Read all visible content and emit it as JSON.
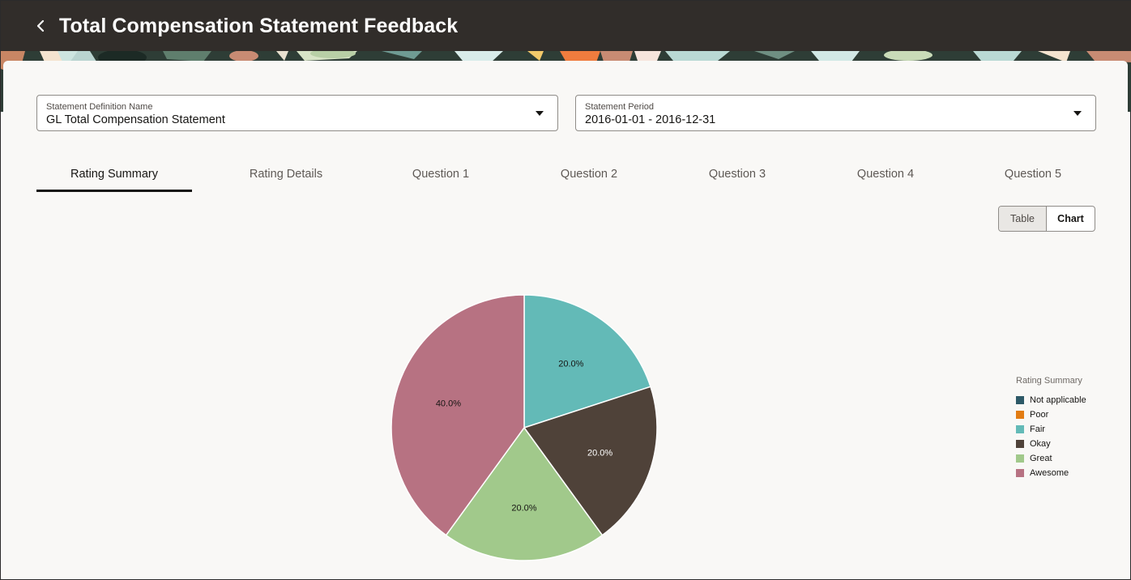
{
  "header": {
    "title": "Total Compensation Statement Feedback",
    "back_icon": "chevron-left-icon"
  },
  "filters": {
    "definition": {
      "label": "Statement Definition Name",
      "value": "GL Total Compensation Statement"
    },
    "period": {
      "label": "Statement Period",
      "value": "2016-01-01 - 2016-12-31"
    }
  },
  "tabs": [
    {
      "label": "Rating Summary",
      "active": true
    },
    {
      "label": "Rating Details",
      "active": false
    },
    {
      "label": "Question 1",
      "active": false
    },
    {
      "label": "Question 2",
      "active": false
    },
    {
      "label": "Question 3",
      "active": false
    },
    {
      "label": "Question 4",
      "active": false
    },
    {
      "label": "Question 5",
      "active": false
    }
  ],
  "view_toggle": {
    "table_label": "Table",
    "chart_label": "Chart",
    "selected": "Chart"
  },
  "chart_data": {
    "type": "pie",
    "legend_title": "Rating Summary",
    "legend_position": "right",
    "slices": [
      {
        "name": "Not applicable",
        "value": 0,
        "label": "",
        "color": "#2d5967"
      },
      {
        "name": "Poor",
        "value": 0,
        "label": "",
        "color": "#e27c13"
      },
      {
        "name": "Fair",
        "value": 20.0,
        "label": "20.0%",
        "color": "#63bab7"
      },
      {
        "name": "Okay",
        "value": 20.0,
        "label": "20.0%",
        "color": "#4f4239"
      },
      {
        "name": "Great",
        "value": 20.0,
        "label": "20.0%",
        "color": "#a1c98b"
      },
      {
        "name": "Awesome",
        "value": 40.0,
        "label": "40.0%",
        "color": "#b77282"
      }
    ]
  },
  "colors": {
    "header_bg": "#312d2a",
    "page_bg": "#f9f8f6",
    "text_primary": "#161513"
  }
}
